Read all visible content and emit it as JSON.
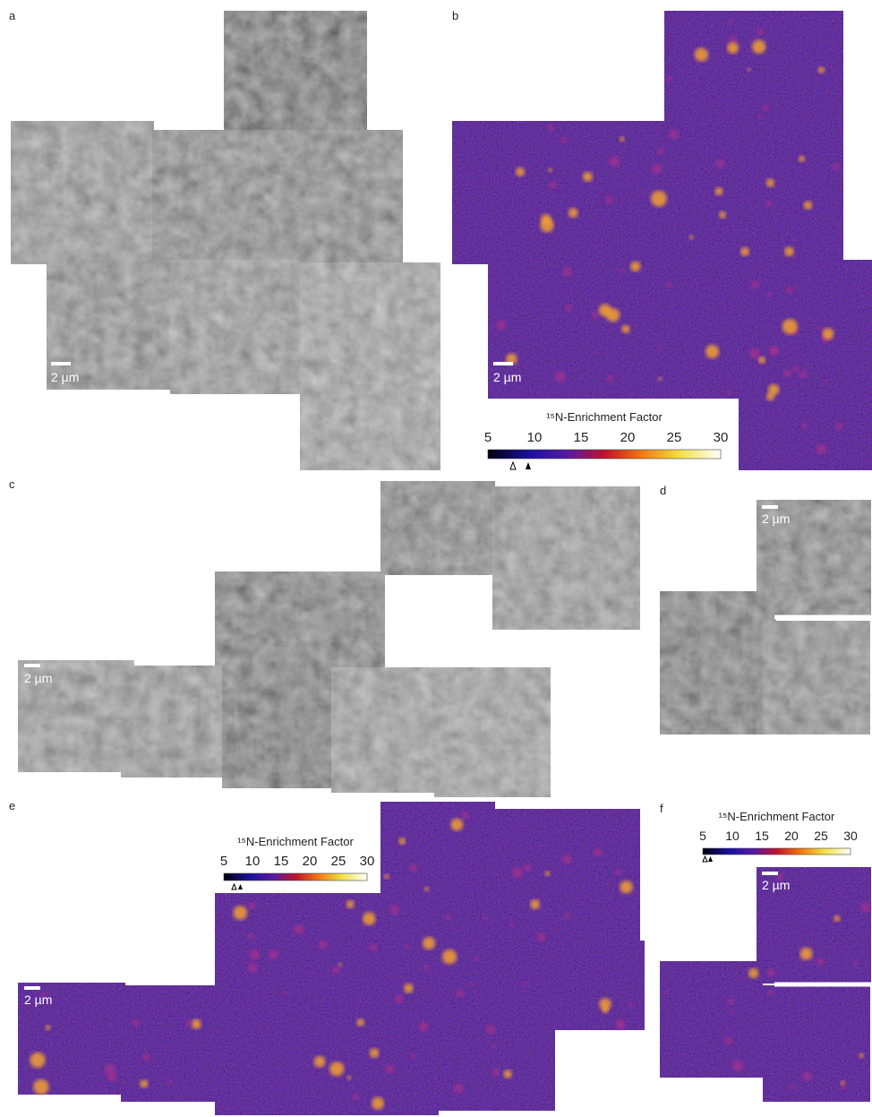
{
  "panels": [
    {
      "label": "a",
      "scale_bar": "2 µm"
    },
    {
      "label": "b",
      "scale_bar": "2 µm",
      "colorbar": {
        "title": "¹⁵N-Enrichment Factor",
        "ticks": [
          5,
          10,
          15,
          20,
          25,
          30
        ]
      }
    },
    {
      "label": "c",
      "scale_bar": "2 µm"
    },
    {
      "label": "d",
      "scale_bar": "2 µm"
    },
    {
      "label": "e",
      "scale_bar": "2 µm",
      "colorbar": {
        "title": "¹⁵N-Enrichment Factor",
        "ticks": [
          5,
          10,
          15,
          20,
          25,
          30
        ]
      }
    },
    {
      "label": "f",
      "scale_bar": "2 µm",
      "colorbar": {
        "title": "¹⁵N-Enrichment Factor",
        "ticks": [
          5,
          10,
          15,
          20,
          25,
          30
        ]
      }
    }
  ]
}
